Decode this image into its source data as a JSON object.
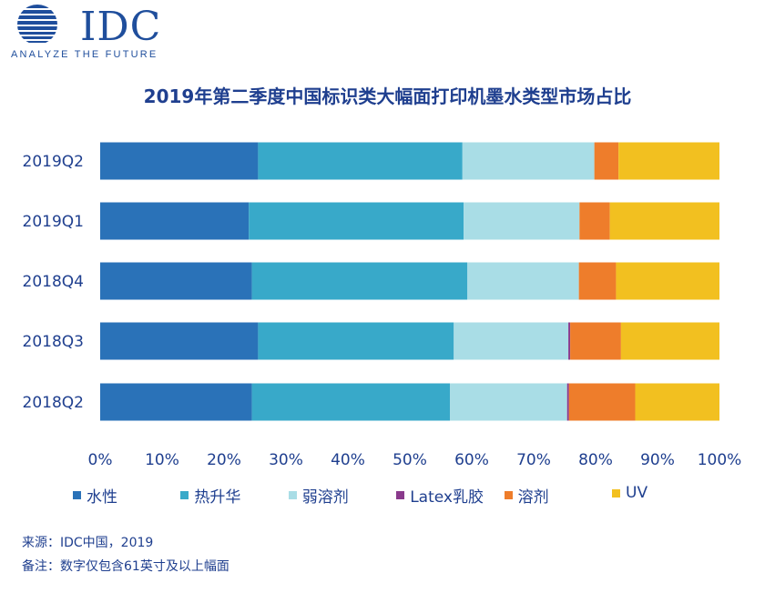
{
  "logo": {
    "brand": "IDC",
    "tagline": "ANALYZE THE FUTURE",
    "brand_color": "#1f4e9c"
  },
  "footer": {
    "source": "来源：IDC中国，2019",
    "note": "备注：数字仅包含61英寸及以上幅面"
  },
  "chart_data": {
    "type": "bar",
    "orientation": "horizontal",
    "stacked": "percent",
    "title": "2019年第二季度中国标识类大幅面打印机墨水类型市场占比",
    "xlabel": "",
    "ylabel": "",
    "xlim": [
      0,
      100
    ],
    "x_ticks": [
      "0%",
      "10%",
      "20%",
      "30%",
      "40%",
      "50%",
      "60%",
      "70%",
      "80%",
      "90%",
      "100%"
    ],
    "categories": [
      "2019Q2",
      "2019Q1",
      "2018Q4",
      "2018Q3",
      "2018Q2"
    ],
    "series": [
      {
        "name": "水性",
        "color": "#2a72b8",
        "values": [
          25.5,
          24.0,
          24.5,
          25.5,
          24.5
        ]
      },
      {
        "name": "热升华",
        "color": "#38a9c9",
        "values": [
          33.0,
          34.7,
          34.8,
          31.6,
          32.0
        ]
      },
      {
        "name": "弱溶剂",
        "color": "#a9dde6",
        "values": [
          21.3,
          18.7,
          18.0,
          18.5,
          18.9
        ]
      },
      {
        "name": "Latex乳胶",
        "color": "#8a3a8c",
        "values": [
          0.0,
          0.0,
          0.0,
          0.3,
          0.3
        ]
      },
      {
        "name": "溶剂",
        "color": "#ee7d2b",
        "values": [
          3.9,
          4.9,
          6.0,
          8.2,
          10.7
        ]
      },
      {
        "name": "UV",
        "color": "#f2c020",
        "values": [
          16.3,
          17.7,
          16.7,
          15.9,
          13.6
        ]
      }
    ],
    "legend_position": "bottom",
    "grid": false
  }
}
